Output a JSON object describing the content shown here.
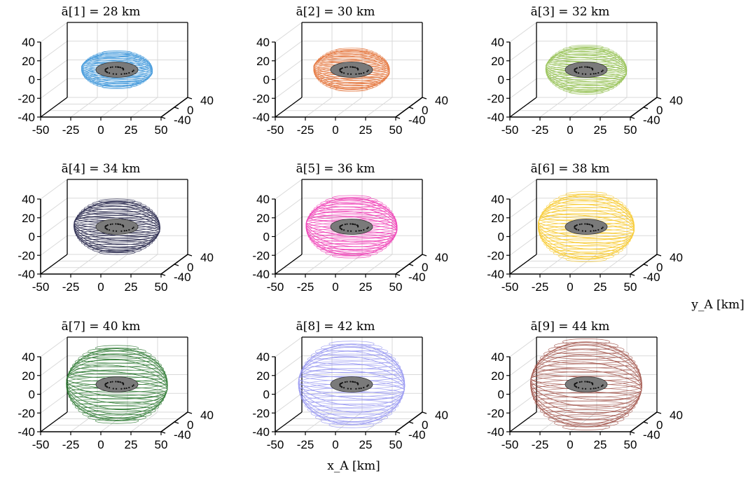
{
  "figure": {
    "xlabel": "x_A [km]",
    "ylabel": "y_A [km]",
    "colors": {
      "body": "#7a7a7a",
      "craters": "#111111",
      "axis": "#000000",
      "grid": "#d9d9d9"
    }
  },
  "chart_data": [
    {
      "type": "3d-orbit",
      "panel": 1,
      "title": "ā[1] = 28 km",
      "semi_major_axis_km": 28,
      "color": "#2f8fd8",
      "xticks": [
        -50,
        -25,
        0,
        25,
        50
      ],
      "yticks": [
        40,
        0,
        -40
      ],
      "zticks": [
        40,
        20,
        0,
        -20,
        -40
      ],
      "xlim": [
        -50,
        50
      ],
      "ylim": [
        -40,
        40
      ],
      "zlim": [
        -40,
        40
      ],
      "grid": true
    },
    {
      "type": "3d-orbit",
      "panel": 2,
      "title": "ā[2] = 30 km",
      "semi_major_axis_km": 30,
      "color": "#e2692b",
      "xticks": [
        -50,
        -25,
        0,
        25,
        50
      ],
      "yticks": [
        40,
        0,
        -40
      ],
      "zticks": [
        40,
        20,
        0,
        -20,
        -40
      ],
      "xlim": [
        -50,
        50
      ],
      "ylim": [
        -40,
        40
      ],
      "zlim": [
        -40,
        40
      ],
      "grid": true
    },
    {
      "type": "3d-orbit",
      "panel": 3,
      "title": "ā[3] = 32 km",
      "semi_major_axis_km": 32,
      "color": "#8cbc45",
      "xticks": [
        -50,
        -25,
        0,
        25,
        50
      ],
      "yticks": [
        40,
        0,
        -40
      ],
      "zticks": [
        40,
        20,
        0,
        -20,
        -40
      ],
      "xlim": [
        -50,
        50
      ],
      "ylim": [
        -40,
        40
      ],
      "zlim": [
        -40,
        40
      ],
      "grid": true
    },
    {
      "type": "3d-orbit",
      "panel": 4,
      "title": "ā[4] = 34 km",
      "semi_major_axis_km": 34,
      "color": "#14143c",
      "xticks": [
        -50,
        -25,
        0,
        25,
        50
      ],
      "yticks": [
        40,
        0,
        -40
      ],
      "zticks": [
        40,
        20,
        0,
        -20,
        -40
      ],
      "xlim": [
        -50,
        50
      ],
      "ylim": [
        -40,
        40
      ],
      "zlim": [
        -40,
        40
      ],
      "grid": true
    },
    {
      "type": "3d-orbit",
      "panel": 5,
      "title": "ā[5] = 36 km",
      "semi_major_axis_km": 36,
      "color": "#ee2fb0",
      "xticks": [
        -50,
        -25,
        0,
        25,
        50
      ],
      "yticks": [
        40,
        0,
        -40
      ],
      "zticks": [
        40,
        20,
        0,
        -20,
        -40
      ],
      "xlim": [
        -50,
        50
      ],
      "ylim": [
        -40,
        40
      ],
      "zlim": [
        -40,
        40
      ],
      "grid": true
    },
    {
      "type": "3d-orbit",
      "panel": 6,
      "title": "ā[6] = 38 km",
      "semi_major_axis_km": 38,
      "color": "#f7c51c",
      "xticks": [
        -50,
        -25,
        0,
        25,
        50
      ],
      "yticks": [
        40,
        0,
        -40
      ],
      "zticks": [
        40,
        20,
        0,
        -20,
        -40
      ],
      "xlim": [
        -50,
        50
      ],
      "ylim": [
        -40,
        40
      ],
      "zlim": [
        -40,
        40
      ],
      "grid": true
    },
    {
      "type": "3d-orbit",
      "panel": 7,
      "title": "ā[7] = 40 km",
      "semi_major_axis_km": 40,
      "color": "#1b6e20",
      "xticks": [
        -50,
        -25,
        0,
        25,
        50
      ],
      "yticks": [
        40,
        0,
        -40
      ],
      "zticks": [
        40,
        20,
        0,
        -20,
        -40
      ],
      "xlim": [
        -50,
        50
      ],
      "ylim": [
        -40,
        40
      ],
      "zlim": [
        -40,
        40
      ],
      "grid": true
    },
    {
      "type": "3d-orbit",
      "panel": 8,
      "title": "ā[8] = 42 km",
      "semi_major_axis_km": 42,
      "color": "#8f8ff0",
      "xticks": [
        -50,
        -25,
        0,
        25,
        50
      ],
      "yticks": [
        40,
        0,
        -40
      ],
      "zticks": [
        40,
        20,
        0,
        -20,
        -40
      ],
      "xlim": [
        -50,
        50
      ],
      "ylim": [
        -40,
        40
      ],
      "zlim": [
        -40,
        40
      ],
      "grid": true
    },
    {
      "type": "3d-orbit",
      "panel": 9,
      "title": "ā[9] = 44 km",
      "semi_major_axis_km": 44,
      "color": "#9c4a40",
      "xticks": [
        -50,
        -25,
        0,
        25,
        50
      ],
      "yticks": [
        40,
        0,
        -40
      ],
      "zticks": [
        40,
        20,
        0,
        -20,
        -40
      ],
      "xlim": [
        -50,
        50
      ],
      "ylim": [
        -40,
        40
      ],
      "zlim": [
        -40,
        40
      ],
      "grid": true
    }
  ]
}
